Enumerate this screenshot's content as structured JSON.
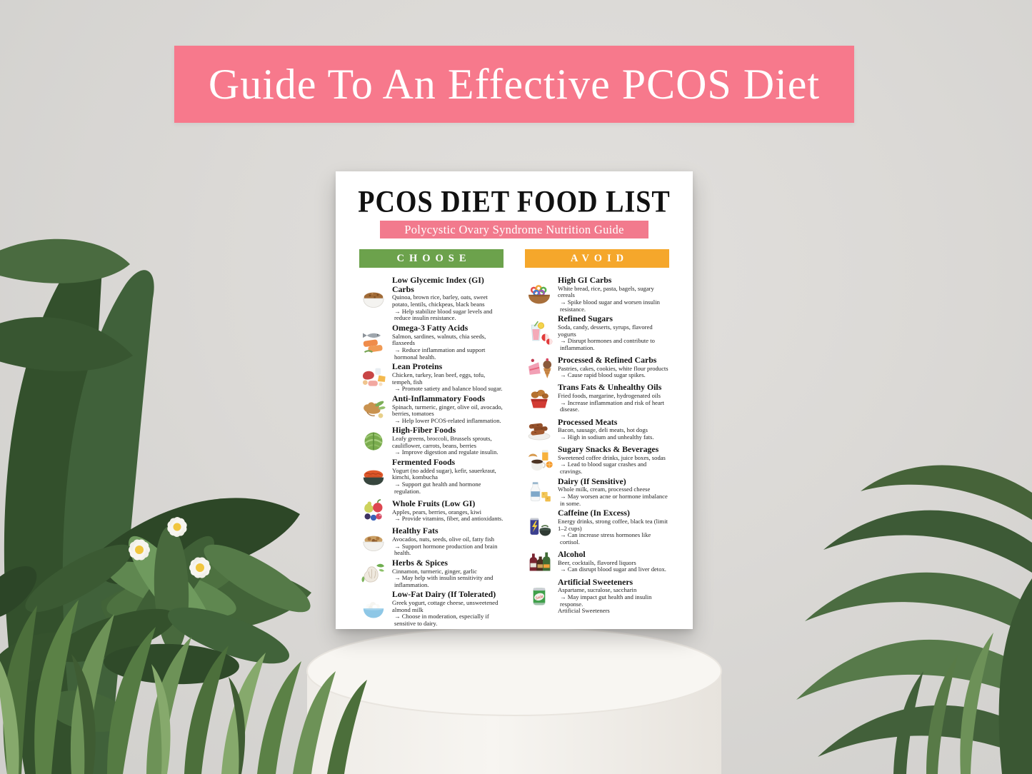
{
  "banner": {
    "title": "Guide To An Effective PCOS Diet"
  },
  "colors": {
    "banner_pink": "#F7798C",
    "subtitle_pink": "#F27A8D",
    "choose_green": "#6CA24C",
    "avoid_orange": "#F5A72B"
  },
  "poster": {
    "title": "PCOS DIET FOOD LIST",
    "subtitle": "Polycystic Ovary Syndrome Nutrition Guide",
    "columns": [
      {
        "header": "CHOOSE",
        "items": [
          {
            "icon": "grain-bowl-icon",
            "heading": "Low Glycemic Index (GI) Carbs",
            "foods": "Quinoa, brown rice, barley, oats, sweet potato, lentils, chickpeas, black beans",
            "benefit": "→ Help stabilize blood sugar levels and reduce insulin resistance."
          },
          {
            "icon": "salmon-icon",
            "heading": "Omega-3 Fatty Acids",
            "foods": "Salmon, sardines, walnuts, chia seeds, flaxseeds",
            "benefit": "→ Reduce inflammation and support hormonal health."
          },
          {
            "icon": "lean-protein-icon",
            "heading": "Lean Proteins",
            "foods": "Chicken, turkey, lean beef, eggs, tofu, tempeh, fish",
            "benefit": "→ Promote satiety and balance blood sugar."
          },
          {
            "icon": "ginger-icon",
            "heading": "Anti-Inflammatory Foods",
            "foods": "Spinach, turmeric, ginger, olive oil, avocado, berries, tomatoes",
            "benefit": "→ Help lower PCOS-related inflammation."
          },
          {
            "icon": "cabbage-icon",
            "heading": "High-Fiber Foods",
            "foods": "Leafy greens, broccoli, Brussels sprouts, cauliflower, carrots, beans, berries",
            "benefit": "→ Improve digestion and regulate insulin."
          },
          {
            "icon": "kimchi-bowl-icon",
            "heading": "Fermented Foods",
            "foods": "Yogurt (no added sugar), kefir, sauerkraut, kimchi, kombucha",
            "benefit": "→ Support gut health and hormone regulation."
          },
          {
            "icon": "fruits-icon",
            "heading": "Whole Fruits (Low GI)",
            "foods": "Apples, pears, berries, oranges, kiwi",
            "benefit": "→ Provide vitamins, fiber, and antioxidants."
          },
          {
            "icon": "nuts-bowl-icon",
            "heading": "Healthy Fats",
            "foods": "Avocados, nuts, seeds, olive oil, fatty fish",
            "benefit": "→ Support hormone production and brain health."
          },
          {
            "icon": "garlic-icon",
            "heading": "Herbs & Spices",
            "foods": "Cinnamon, turmeric, ginger, garlic",
            "benefit": "→ May help with insulin sensitivity and inflammation."
          },
          {
            "icon": "dairy-bowl-icon",
            "heading": "Low-Fat Dairy (If Tolerated)",
            "foods": "Greek yogurt, cottage cheese, unsweetened almond milk",
            "benefit": "→ Choose in moderation, especially if sensitive to dairy."
          }
        ]
      },
      {
        "header": "AVOID",
        "items": [
          {
            "icon": "cereal-bowl-icon",
            "heading": "High GI Carbs",
            "foods": "White bread, rice, pasta, bagels, sugary cereals",
            "benefit": "→ Spike blood sugar and worsen insulin resistance."
          },
          {
            "icon": "sugary-drink-icon",
            "heading": "Refined Sugars",
            "foods": "Soda, candy, desserts, syrups, flavored yogurts",
            "benefit": "→ Disrupt hormones and contribute to inflammation."
          },
          {
            "icon": "desserts-icon",
            "heading": "Processed & Refined Carbs",
            "foods": "Pastries, cakes, cookies, white flour products",
            "benefit": "→ Cause rapid blood sugar spikes."
          },
          {
            "icon": "fried-food-icon",
            "heading": "Trans Fats & Unhealthy Oils",
            "foods": "Fried foods, margarine, hydrogenated oils",
            "benefit": "→ Increase inflammation and risk of heart disease."
          },
          {
            "icon": "sausages-icon",
            "heading": "Processed Meats",
            "foods": "Bacon, sausage, deli meats, hot dogs",
            "benefit": "→ High in sodium and unhealthy fats."
          },
          {
            "icon": "coffee-snacks-icon",
            "heading": "Sugary Snacks & Beverages",
            "foods": "Sweetened coffee drinks, juice boxes, sodas",
            "benefit": "→ Lead to blood sugar crashes and cravings."
          },
          {
            "icon": "milk-cheese-icon",
            "heading": "Dairy (If Sensitive)",
            "foods": "Whole milk, cream, processed cheese",
            "benefit": "→ May worsen acne or hormone imbalance in some."
          },
          {
            "icon": "energy-drink-icon",
            "heading": "Caffeine (In Excess)",
            "foods": "Energy drinks, strong coffee, black tea (limit 1–2 cups)",
            "benefit": "→ Can increase stress hormones like cortisol."
          },
          {
            "icon": "alcohol-icon",
            "heading": "Alcohol",
            "foods": "Beer, cocktails, flavored liquors",
            "benefit": "→ Can disrupt blood sugar and liver detox."
          },
          {
            "icon": "soda-can-icon",
            "heading": "Artificial Sweeteners",
            "foods": "Aspartame, sucralose, saccharin",
            "benefit": "→ May impact gut health and insulin response.",
            "note": "Artificial Sweeteners",
            "icon_label": "Soda"
          }
        ]
      }
    ]
  }
}
